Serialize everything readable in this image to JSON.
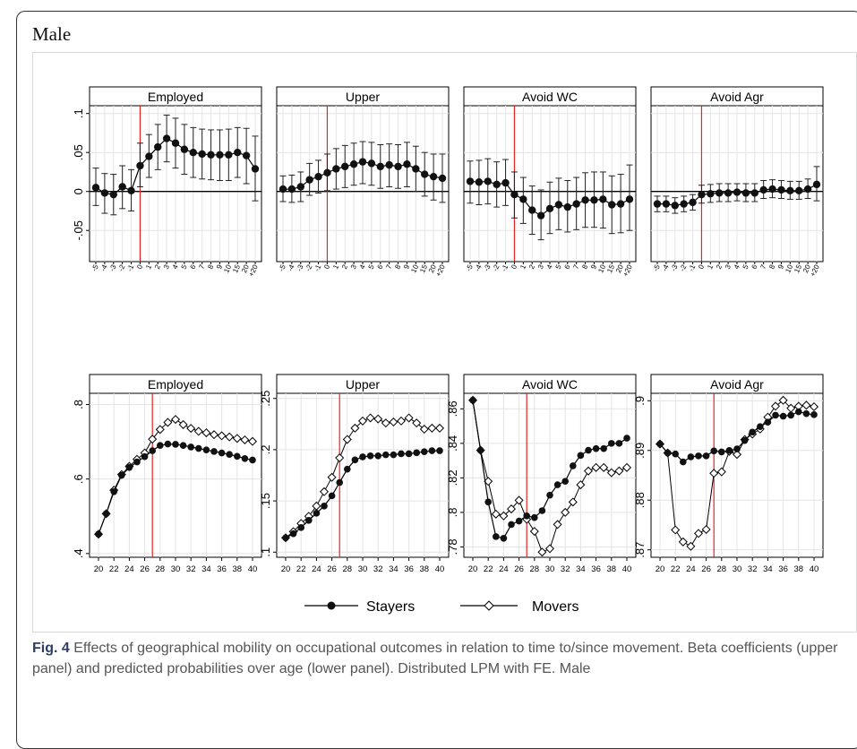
{
  "section_label": "Male",
  "caption": {
    "prefix": "Fig. 4",
    "text": "Effects of geographical mobility on occupational outcomes in relation to time to/since movement. Beta coefficients (upper panel) and predicted probabilities over age (lower panel). Distributed LPM with FE. Male"
  },
  "legend": {
    "stayers": "Stayers",
    "movers": "Movers"
  },
  "colors": {
    "vline": "#e8231f",
    "marker": "#111111",
    "grid": "#e4e4e4"
  },
  "chart_data": [
    {
      "type": "scatter",
      "title": "Employed",
      "x_tick_labels": [
        "-5",
        "-4",
        "-3",
        "-2",
        "-1",
        "0",
        "1",
        "2",
        "3",
        "4",
        "5",
        "6",
        "7",
        "8",
        "9",
        "10",
        "15",
        "20",
        "+20"
      ],
      "ylim": [
        -0.09,
        0.11
      ],
      "y_ticks": [
        ".1",
        ".05",
        "0",
        "-.05"
      ],
      "y_tick_values": [
        0.1,
        0.05,
        0,
        -0.05
      ],
      "vline_x": "0",
      "estimates": [
        0.005,
        -0.002,
        -0.004,
        0.006,
        0.001,
        0.033,
        0.045,
        0.057,
        0.068,
        0.062,
        0.054,
        0.05,
        0.048,
        0.047,
        0.047,
        0.047,
        0.05,
        0.046,
        0.029
      ],
      "ci_low": [
        -0.018,
        -0.028,
        -0.03,
        -0.022,
        -0.025,
        0.006,
        0.018,
        0.028,
        0.038,
        0.03,
        0.022,
        0.018,
        0.016,
        0.015,
        0.014,
        0.014,
        0.018,
        0.01,
        -0.012
      ],
      "ci_high": [
        0.03,
        0.023,
        0.022,
        0.033,
        0.028,
        0.062,
        0.073,
        0.086,
        0.098,
        0.094,
        0.086,
        0.082,
        0.08,
        0.079,
        0.079,
        0.08,
        0.082,
        0.081,
        0.071
      ]
    },
    {
      "type": "scatter",
      "title": "Upper",
      "x_tick_labels": [
        "-5",
        "-4",
        "-3",
        "-2",
        "-1",
        "0",
        "1",
        "2",
        "3",
        "4",
        "5",
        "6",
        "7",
        "8",
        "9",
        "10",
        "15",
        "20",
        "+20"
      ],
      "ylim": [
        -0.09,
        0.11
      ],
      "y_ticks": [],
      "y_tick_values": [
        0.1,
        0.05,
        0,
        -0.05
      ],
      "vline_x": "0",
      "estimates": [
        0.003,
        0.003,
        0.006,
        0.015,
        0.019,
        0.024,
        0.029,
        0.032,
        0.035,
        0.038,
        0.036,
        0.032,
        0.034,
        0.032,
        0.035,
        0.029,
        0.022,
        0.019,
        0.017
      ],
      "ci_low": [
        -0.013,
        -0.014,
        -0.013,
        -0.005,
        -0.002,
        0.001,
        0.003,
        0.005,
        0.008,
        0.01,
        0.008,
        0.004,
        0.006,
        0.004,
        0.006,
        0.0,
        -0.006,
        -0.011,
        -0.014
      ],
      "ci_high": [
        0.02,
        0.021,
        0.025,
        0.036,
        0.04,
        0.048,
        0.055,
        0.059,
        0.062,
        0.064,
        0.063,
        0.06,
        0.061,
        0.06,
        0.063,
        0.058,
        0.05,
        0.048,
        0.048
      ]
    },
    {
      "type": "scatter",
      "title": "Avoid WC",
      "x_tick_labels": [
        "-5",
        "-4",
        "-3",
        "-2",
        "-1",
        "0",
        "1",
        "2",
        "3",
        "4",
        "5",
        "6",
        "7",
        "8",
        "9",
        "10",
        "15",
        "20",
        "+20"
      ],
      "ylim": [
        -0.09,
        0.11
      ],
      "y_ticks": [],
      "y_tick_values": [
        0.1,
        0.05,
        0,
        -0.05
      ],
      "vline_x": "0",
      "estimates": [
        0.013,
        0.012,
        0.013,
        0.009,
        0.011,
        -0.004,
        -0.01,
        -0.024,
        -0.031,
        -0.022,
        -0.017,
        -0.02,
        -0.016,
        -0.011,
        -0.011,
        -0.01,
        -0.017,
        -0.016,
        -0.01
      ],
      "ci_low": [
        -0.015,
        -0.017,
        -0.016,
        -0.02,
        -0.018,
        -0.034,
        -0.041,
        -0.055,
        -0.062,
        -0.054,
        -0.049,
        -0.052,
        -0.049,
        -0.046,
        -0.046,
        -0.047,
        -0.054,
        -0.053,
        -0.05
      ],
      "ci_high": [
        0.039,
        0.04,
        0.042,
        0.038,
        0.041,
        0.025,
        0.018,
        0.007,
        0.002,
        0.012,
        0.017,
        0.014,
        0.018,
        0.024,
        0.025,
        0.025,
        0.02,
        0.022,
        0.034
      ]
    },
    {
      "type": "scatter",
      "title": "Avoid Agr",
      "x_tick_labels": [
        "-5",
        "-4",
        "-3",
        "-2",
        "-1",
        "0",
        "1",
        "2",
        "3",
        "4",
        "5",
        "6",
        "7",
        "8",
        "9",
        "10",
        "15",
        "20",
        "+20"
      ],
      "ylim": [
        -0.09,
        0.11
      ],
      "y_ticks": [],
      "y_tick_values": [
        0.1,
        0.05,
        0,
        -0.05
      ],
      "vline_x": "0",
      "estimates": [
        -0.016,
        -0.016,
        -0.018,
        -0.016,
        -0.014,
        -0.004,
        -0.003,
        -0.002,
        -0.002,
        -0.001,
        -0.002,
        -0.002,
        0.002,
        0.003,
        0.002,
        0.001,
        0.001,
        0.003,
        0.009
      ],
      "ci_low": [
        -0.026,
        -0.026,
        -0.028,
        -0.026,
        -0.024,
        -0.015,
        -0.014,
        -0.013,
        -0.013,
        -0.012,
        -0.013,
        -0.013,
        -0.009,
        -0.008,
        -0.009,
        -0.01,
        -0.01,
        -0.009,
        -0.012
      ],
      "ci_high": [
        -0.006,
        -0.006,
        -0.008,
        -0.006,
        -0.004,
        0.008,
        0.009,
        0.01,
        0.01,
        0.01,
        0.01,
        0.01,
        0.014,
        0.015,
        0.014,
        0.013,
        0.013,
        0.016,
        0.032
      ]
    },
    {
      "type": "line",
      "title": "Employed",
      "x": [
        20,
        21,
        22,
        23,
        24,
        25,
        26,
        27,
        28,
        29,
        30,
        31,
        32,
        33,
        34,
        35,
        36,
        37,
        38,
        39,
        40
      ],
      "x_ticks": [
        20,
        22,
        24,
        26,
        28,
        30,
        32,
        34,
        36,
        38,
        40
      ],
      "ylim": [
        0.39,
        0.83
      ],
      "y_ticks": [
        0.4,
        0.6,
        0.8
      ],
      "y_tick_labels": [
        ".4",
        ".6",
        ".8"
      ],
      "vline_x": 27,
      "series": [
        {
          "name": "Stayers",
          "values": [
            0.452,
            0.507,
            0.566,
            0.61,
            0.631,
            0.646,
            0.66,
            0.676,
            0.69,
            0.694,
            0.693,
            0.69,
            0.686,
            0.682,
            0.678,
            0.674,
            0.67,
            0.666,
            0.661,
            0.655,
            0.651
          ]
        },
        {
          "name": "Movers",
          "values": [
            0.452,
            0.507,
            0.57,
            0.612,
            0.634,
            0.653,
            0.67,
            0.707,
            0.733,
            0.752,
            0.76,
            0.746,
            0.736,
            0.728,
            0.724,
            0.719,
            0.716,
            0.713,
            0.709,
            0.705,
            0.701
          ]
        }
      ]
    },
    {
      "type": "line",
      "title": "Upper",
      "x": [
        20,
        21,
        22,
        23,
        24,
        25,
        26,
        27,
        28,
        29,
        30,
        31,
        32,
        33,
        34,
        35,
        36,
        37,
        38,
        39,
        40
      ],
      "x_ticks": [
        20,
        22,
        24,
        26,
        28,
        30,
        32,
        34,
        36,
        38,
        40
      ],
      "ylim": [
        0.095,
        0.255
      ],
      "y_ticks": [
        0.1,
        0.15,
        0.2,
        0.25
      ],
      "y_tick_labels": [
        ".1",
        ".15",
        ".2",
        ".25"
      ],
      "vline_x": 27,
      "series": [
        {
          "name": "Stayers",
          "values": [
            0.114,
            0.118,
            0.124,
            0.131,
            0.138,
            0.145,
            0.155,
            0.168,
            0.181,
            0.19,
            0.193,
            0.194,
            0.194,
            0.195,
            0.195,
            0.196,
            0.196,
            0.197,
            0.198,
            0.199,
            0.199
          ]
        },
        {
          "name": "Movers",
          "values": [
            0.114,
            0.12,
            0.128,
            0.135,
            0.145,
            0.159,
            0.173,
            0.192,
            0.21,
            0.221,
            0.228,
            0.231,
            0.23,
            0.226,
            0.227,
            0.228,
            0.231,
            0.226,
            0.22,
            0.221,
            0.221
          ]
        }
      ]
    },
    {
      "type": "line",
      "title": "Avoid WC",
      "x": [
        20,
        21,
        22,
        23,
        24,
        25,
        26,
        27,
        28,
        29,
        30,
        31,
        32,
        33,
        34,
        35,
        36,
        37,
        38,
        39,
        40
      ],
      "x_ticks": [
        20,
        22,
        24,
        26,
        28,
        30,
        32,
        34,
        36,
        38,
        40
      ],
      "ylim": [
        0.774,
        0.869
      ],
      "y_ticks": [
        0.78,
        0.8,
        0.82,
        0.84,
        0.86
      ],
      "y_tick_labels": [
        ".78",
        ".8",
        ".82",
        ".84",
        ".86"
      ],
      "vline_x": 27,
      "series": [
        {
          "name": "Stayers",
          "values": [
            0.865,
            0.836,
            0.806,
            0.786,
            0.785,
            0.793,
            0.795,
            0.798,
            0.797,
            0.801,
            0.81,
            0.816,
            0.818,
            0.827,
            0.833,
            0.836,
            0.837,
            0.837,
            0.84,
            0.84,
            0.843
          ]
        },
        {
          "name": "Movers",
          "values": [
            0.865,
            0.836,
            0.818,
            0.799,
            0.798,
            0.802,
            0.807,
            0.796,
            0.789,
            0.777,
            0.779,
            0.793,
            0.8,
            0.806,
            0.816,
            0.824,
            0.826,
            0.826,
            0.823,
            0.824,
            0.826
          ]
        }
      ]
    },
    {
      "type": "line",
      "title": "Avoid Agr",
      "x": [
        20,
        21,
        22,
        23,
        24,
        25,
        26,
        27,
        28,
        29,
        30,
        31,
        32,
        33,
        34,
        35,
        36,
        37,
        38,
        39,
        40
      ],
      "x_ticks": [
        20,
        22,
        24,
        26,
        28,
        30,
        32,
        34,
        36,
        38,
        40
      ],
      "ylim": [
        0.8685,
        0.9015
      ],
      "y_ticks": [
        0.87,
        0.88,
        0.89,
        0.9
      ],
      "y_tick_labels": [
        ".87",
        ".88",
        ".89",
        ".9"
      ],
      "vline_x": 27,
      "series": [
        {
          "name": "Stayers",
          "values": [
            0.8913,
            0.8895,
            0.8893,
            0.8877,
            0.8887,
            0.8889,
            0.8889,
            0.8899,
            0.8897,
            0.89,
            0.8903,
            0.892,
            0.8937,
            0.8948,
            0.8957,
            0.8971,
            0.8969,
            0.8971,
            0.8978,
            0.8974,
            0.8972
          ]
        },
        {
          "name": "Movers",
          "values": [
            0.8913,
            0.8895,
            0.874,
            0.8716,
            0.8707,
            0.8733,
            0.8741,
            0.8854,
            0.8857,
            0.8898,
            0.8892,
            0.8922,
            0.8933,
            0.8943,
            0.8967,
            0.8989,
            0.9001,
            0.8985,
            0.8989,
            0.8991,
            0.8988
          ]
        }
      ]
    }
  ]
}
